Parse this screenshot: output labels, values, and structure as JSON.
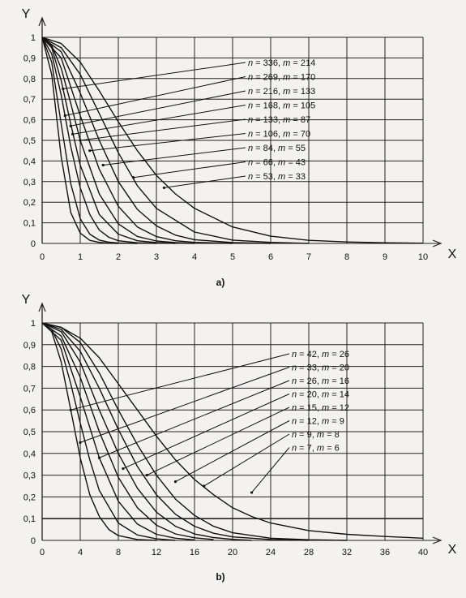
{
  "chart_data": [
    {
      "type": "line",
      "panel_label": "a)",
      "xlabel": "X",
      "ylabel": "Y",
      "xlim": [
        0,
        10
      ],
      "ylim": [
        0,
        1
      ],
      "x_ticks": [
        "0",
        "1",
        "2",
        "3",
        "4",
        "5",
        "6",
        "7",
        "8",
        "9",
        "10"
      ],
      "y_ticks": [
        "0",
        "0,1",
        "0,2",
        "0,3",
        "0,4",
        "0,5",
        "0,6",
        "0,7",
        "0,8",
        "0,9",
        "1"
      ],
      "grid": true,
      "series": [
        {
          "name": "n = 336, m = 214",
          "label_n": "336",
          "label_m": "214",
          "x": [
            0,
            0.25,
            0.5,
            0.75,
            1.0,
            1.25,
            1.5,
            1.75,
            2.0
          ],
          "y": [
            1.0,
            0.82,
            0.42,
            0.15,
            0.05,
            0.015,
            0.005,
            0.001,
            0.0
          ]
        },
        {
          "name": "n = 269, m = 170",
          "label_n": "269",
          "label_m": "170",
          "x": [
            0,
            0.25,
            0.5,
            0.75,
            1.0,
            1.25,
            1.5,
            1.75,
            2.0,
            2.5
          ],
          "y": [
            1.0,
            0.88,
            0.58,
            0.29,
            0.12,
            0.045,
            0.016,
            0.006,
            0.002,
            0.0
          ]
        },
        {
          "name": "n = 216, m = 133",
          "label_n": "216",
          "label_m": "133",
          "x": [
            0,
            0.25,
            0.5,
            0.75,
            1.0,
            1.25,
            1.5,
            1.75,
            2.0,
            2.5,
            3.0
          ],
          "y": [
            1.0,
            0.92,
            0.72,
            0.47,
            0.27,
            0.14,
            0.065,
            0.03,
            0.013,
            0.003,
            0.0
          ]
        },
        {
          "name": "n = 168, m = 105",
          "label_n": "168",
          "label_m": "105",
          "x": [
            0,
            0.25,
            0.5,
            0.75,
            1.0,
            1.5,
            2.0,
            2.5,
            3.0,
            3.5
          ],
          "y": [
            1.0,
            0.95,
            0.79,
            0.58,
            0.38,
            0.14,
            0.045,
            0.013,
            0.004,
            0.0
          ]
        },
        {
          "name": "n = 133, m = 87",
          "label_n": "133",
          "label_m": "87",
          "x": [
            0,
            0.25,
            0.5,
            0.75,
            1.0,
            1.5,
            2.0,
            2.5,
            3.0,
            3.5,
            4.0
          ],
          "y": [
            1.0,
            0.96,
            0.85,
            0.68,
            0.5,
            0.24,
            0.095,
            0.034,
            0.012,
            0.004,
            0.0
          ]
        },
        {
          "name": "n = 106, m = 70",
          "label_n": "106",
          "label_m": "70",
          "x": [
            0,
            0.5,
            1.0,
            1.5,
            2.0,
            2.5,
            3.0,
            3.5,
            4.0,
            5.0
          ],
          "y": [
            1.0,
            0.9,
            0.62,
            0.36,
            0.18,
            0.08,
            0.033,
            0.013,
            0.005,
            0.0
          ]
        },
        {
          "name": "n = 84, m = 55",
          "label_n": "84",
          "label_m": "55",
          "x": [
            0,
            0.5,
            1.0,
            1.5,
            2.0,
            2.5,
            3.0,
            3.5,
            4.0,
            5.0,
            6.0
          ],
          "y": [
            1.0,
            0.93,
            0.73,
            0.5,
            0.3,
            0.165,
            0.085,
            0.04,
            0.018,
            0.004,
            0.0
          ]
        },
        {
          "name": "n = 66, m = 43",
          "label_n": "66",
          "label_m": "43",
          "x": [
            0,
            0.5,
            1.0,
            1.5,
            2.0,
            2.5,
            3.0,
            4.0,
            5.0,
            6.0,
            7.0
          ],
          "y": [
            1.0,
            0.95,
            0.82,
            0.63,
            0.44,
            0.28,
            0.17,
            0.055,
            0.016,
            0.005,
            0.0
          ]
        },
        {
          "name": "n = 53, m = 33",
          "label_n": "53",
          "label_m": "33",
          "x": [
            0,
            0.5,
            1.0,
            1.5,
            2.0,
            2.5,
            3.0,
            3.5,
            4.0,
            5.0,
            6.0,
            7.0,
            8.0,
            9.0,
            10.0
          ],
          "y": [
            1.0,
            0.97,
            0.88,
            0.74,
            0.59,
            0.45,
            0.33,
            0.24,
            0.17,
            0.08,
            0.035,
            0.015,
            0.007,
            0.003,
            0.001
          ]
        }
      ]
    },
    {
      "type": "line",
      "panel_label": "b)",
      "xlabel": "X",
      "ylabel": "Y",
      "xlim": [
        0,
        40
      ],
      "ylim": [
        0,
        1
      ],
      "x_ticks": [
        "0",
        "4",
        "8",
        "12",
        "16",
        "20",
        "24",
        "28",
        "32",
        "36",
        "40"
      ],
      "y_ticks": [
        "0",
        "0,1",
        "0,2",
        "0,3",
        "0,4",
        "0,5",
        "0,6",
        "0,7",
        "0,8",
        "0,9",
        "1"
      ],
      "grid": true,
      "series": [
        {
          "name": "n = 42, m = 26",
          "label_n": "42",
          "label_m": "26",
          "x": [
            0,
            1,
            2,
            3,
            4,
            5,
            6,
            7,
            8,
            10,
            12
          ],
          "y": [
            1.0,
            0.96,
            0.82,
            0.6,
            0.38,
            0.21,
            0.11,
            0.05,
            0.022,
            0.004,
            0.0
          ]
        },
        {
          "name": "n = 33, m = 20",
          "label_n": "33",
          "label_m": "20",
          "x": [
            0,
            1,
            2,
            3,
            4,
            5,
            6,
            8,
            10,
            12,
            14
          ],
          "y": [
            1.0,
            0.97,
            0.88,
            0.72,
            0.54,
            0.37,
            0.23,
            0.08,
            0.025,
            0.007,
            0.0
          ]
        },
        {
          "name": "n = 26, m = 16",
          "label_n": "26",
          "label_m": "16",
          "x": [
            0,
            2,
            4,
            6,
            8,
            10,
            12,
            14,
            16
          ],
          "y": [
            1.0,
            0.92,
            0.66,
            0.38,
            0.18,
            0.075,
            0.028,
            0.01,
            0.002
          ]
        },
        {
          "name": "n = 20, m = 14",
          "label_n": "20",
          "label_m": "14",
          "x": [
            0,
            2,
            4,
            6,
            8,
            10,
            12,
            14,
            16,
            18
          ],
          "y": [
            1.0,
            0.94,
            0.75,
            0.5,
            0.29,
            0.15,
            0.07,
            0.03,
            0.012,
            0.004
          ]
        },
        {
          "name": "n = 15, m = 12",
          "label_n": "15",
          "label_m": "12",
          "x": [
            0,
            2,
            4,
            6,
            8,
            10,
            12,
            14,
            16,
            18,
            20,
            22
          ],
          "y": [
            1.0,
            0.96,
            0.82,
            0.6,
            0.4,
            0.24,
            0.13,
            0.065,
            0.03,
            0.013,
            0.005,
            0.0
          ]
        },
        {
          "name": "n = 12, m = 9",
          "label_n": "12",
          "label_m": "9",
          "x": [
            0,
            2,
            4,
            6,
            8,
            10,
            12,
            14,
            16,
            18,
            20,
            24,
            28
          ],
          "y": [
            1.0,
            0.97,
            0.87,
            0.7,
            0.51,
            0.34,
            0.21,
            0.12,
            0.065,
            0.033,
            0.016,
            0.004,
            0.0
          ]
        },
        {
          "name": "n = 9, m = 8",
          "label_n": "9",
          "label_m": "8",
          "x": [
            0,
            2,
            4,
            6,
            8,
            10,
            12,
            14,
            16,
            18,
            20,
            24,
            28,
            32
          ],
          "y": [
            1.0,
            0.98,
            0.91,
            0.77,
            0.6,
            0.44,
            0.3,
            0.19,
            0.115,
            0.065,
            0.035,
            0.01,
            0.003,
            0.0
          ]
        },
        {
          "name": "n = 7, m = 6",
          "label_n": "7",
          "label_m": "6",
          "x": [
            0,
            2,
            4,
            6,
            8,
            10,
            12,
            14,
            16,
            18,
            20,
            22,
            24,
            28,
            32,
            36,
            40
          ],
          "y": [
            1.0,
            0.98,
            0.93,
            0.84,
            0.72,
            0.6,
            0.48,
            0.37,
            0.28,
            0.21,
            0.15,
            0.11,
            0.08,
            0.045,
            0.028,
            0.018,
            0.01
          ]
        }
      ]
    }
  ]
}
